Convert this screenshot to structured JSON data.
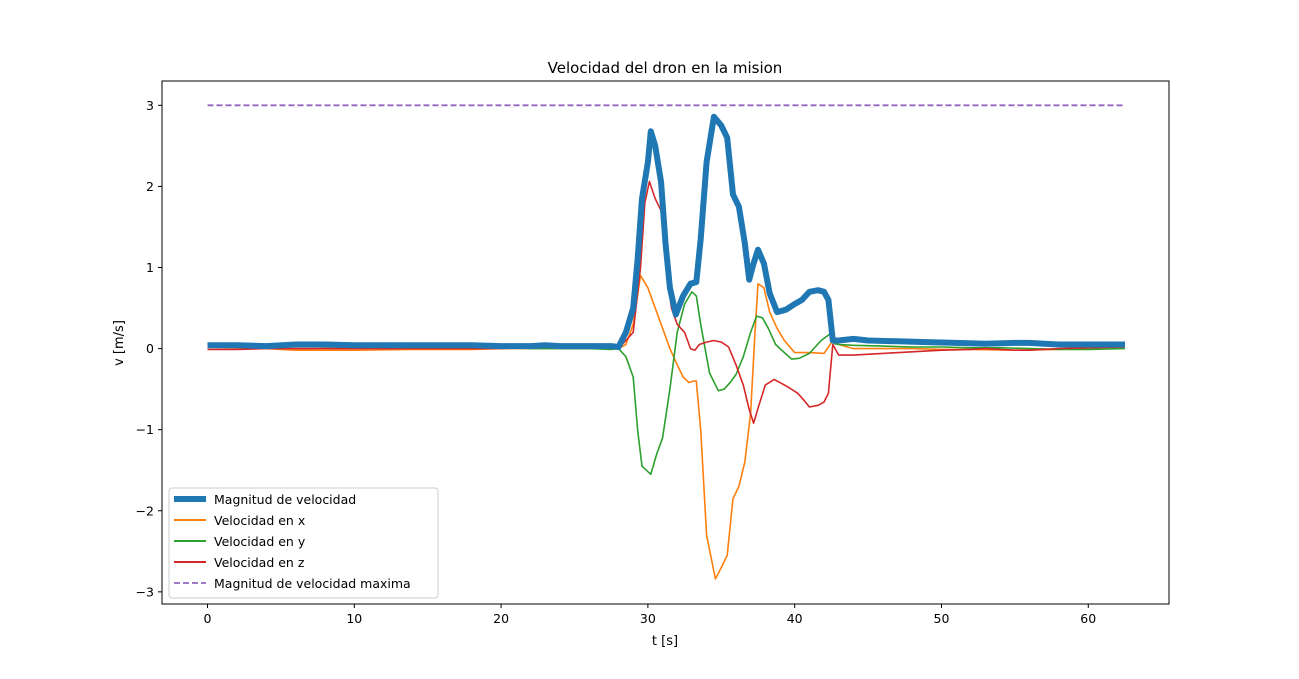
{
  "chart_data": {
    "type": "line",
    "title": "Velocidad del dron en la mision",
    "xlabel": "t [s]",
    "ylabel": "v [m/s]",
    "xlim": [
      -3.1,
      65.5
    ],
    "ylim": [
      -3.15,
      3.3
    ],
    "x_ticks": [
      0,
      10,
      20,
      30,
      40,
      50,
      60
    ],
    "y_ticks": [
      -3,
      -2,
      -1,
      0,
      1,
      2,
      3
    ],
    "x_tick_labels": [
      "0",
      "10",
      "20",
      "30",
      "40",
      "50",
      "60"
    ],
    "y_tick_labels": [
      "−3",
      "−2",
      "−1",
      "0",
      "1",
      "2",
      "3"
    ],
    "grid": false,
    "legend_position": "lower-left",
    "series": [
      {
        "name": "Magnitud de velocidad",
        "color": "#1f77b4",
        "style": "solid-thick",
        "points": [
          [
            0,
            0.04
          ],
          [
            2,
            0.04
          ],
          [
            4,
            0.03
          ],
          [
            6,
            0.05
          ],
          [
            8,
            0.05
          ],
          [
            10,
            0.04
          ],
          [
            12,
            0.04
          ],
          [
            14,
            0.04
          ],
          [
            16,
            0.04
          ],
          [
            18,
            0.04
          ],
          [
            20,
            0.03
          ],
          [
            22,
            0.03
          ],
          [
            23,
            0.04
          ],
          [
            24,
            0.03
          ],
          [
            26,
            0.03
          ],
          [
            27.5,
            0.03
          ],
          [
            28,
            0.02
          ],
          [
            28.5,
            0.2
          ],
          [
            29,
            0.5
          ],
          [
            29.3,
            1.1
          ],
          [
            29.6,
            1.85
          ],
          [
            30.0,
            2.3
          ],
          [
            30.2,
            2.68
          ],
          [
            30.5,
            2.5
          ],
          [
            30.9,
            2.05
          ],
          [
            31.2,
            1.3
          ],
          [
            31.5,
            0.75
          ],
          [
            31.9,
            0.42
          ],
          [
            32.4,
            0.65
          ],
          [
            32.9,
            0.8
          ],
          [
            33.3,
            0.82
          ],
          [
            33.6,
            1.35
          ],
          [
            34.0,
            2.3
          ],
          [
            34.5,
            2.86
          ],
          [
            35.0,
            2.75
          ],
          [
            35.4,
            2.6
          ],
          [
            35.8,
            1.9
          ],
          [
            36.2,
            1.75
          ],
          [
            36.6,
            1.3
          ],
          [
            36.9,
            0.85
          ],
          [
            37.2,
            1.05
          ],
          [
            37.5,
            1.22
          ],
          [
            37.9,
            1.05
          ],
          [
            38.3,
            0.68
          ],
          [
            38.8,
            0.45
          ],
          [
            39.4,
            0.48
          ],
          [
            40.0,
            0.55
          ],
          [
            40.5,
            0.6
          ],
          [
            41.0,
            0.7
          ],
          [
            41.6,
            0.72
          ],
          [
            42.0,
            0.7
          ],
          [
            42.3,
            0.6
          ],
          [
            42.6,
            0.1
          ],
          [
            43,
            0.1
          ],
          [
            44,
            0.12
          ],
          [
            45,
            0.1
          ],
          [
            47,
            0.09
          ],
          [
            49,
            0.08
          ],
          [
            51,
            0.07
          ],
          [
            53,
            0.06
          ],
          [
            55,
            0.07
          ],
          [
            56,
            0.07
          ],
          [
            57,
            0.06
          ],
          [
            58,
            0.05
          ],
          [
            60,
            0.05
          ],
          [
            62.5,
            0.05
          ]
        ]
      },
      {
        "name": "Velocidad en x",
        "color": "#ff7f0e",
        "style": "solid",
        "points": [
          [
            0,
            0.02
          ],
          [
            2,
            0.01
          ],
          [
            4,
            0.0
          ],
          [
            6,
            -0.02
          ],
          [
            8,
            -0.02
          ],
          [
            10,
            -0.02
          ],
          [
            14,
            -0.01
          ],
          [
            18,
            -0.01
          ],
          [
            20,
            0.0
          ],
          [
            22,
            0.0
          ],
          [
            24,
            0.0
          ],
          [
            26,
            0.0
          ],
          [
            27.5,
            0.0
          ],
          [
            28,
            0.0
          ],
          [
            28.5,
            0.05
          ],
          [
            29,
            0.3
          ],
          [
            29.5,
            0.9
          ],
          [
            30.0,
            0.75
          ],
          [
            30.5,
            0.5
          ],
          [
            31.0,
            0.25
          ],
          [
            31.5,
            0.0
          ],
          [
            32.0,
            -0.2
          ],
          [
            32.4,
            -0.35
          ],
          [
            32.8,
            -0.42
          ],
          [
            33.1,
            -0.4
          ],
          [
            33.3,
            -0.4
          ],
          [
            33.6,
            -1.0
          ],
          [
            34.0,
            -2.3
          ],
          [
            34.6,
            -2.84
          ],
          [
            35.0,
            -2.7
          ],
          [
            35.4,
            -2.55
          ],
          [
            35.8,
            -1.85
          ],
          [
            36.2,
            -1.7
          ],
          [
            36.6,
            -1.4
          ],
          [
            37.0,
            -0.8
          ],
          [
            37.3,
            0.2
          ],
          [
            37.5,
            0.8
          ],
          [
            37.9,
            0.75
          ],
          [
            38.3,
            0.45
          ],
          [
            38.8,
            0.25
          ],
          [
            39.3,
            0.1
          ],
          [
            40,
            -0.05
          ],
          [
            41,
            -0.05
          ],
          [
            42,
            -0.06
          ],
          [
            42.6,
            0.1
          ],
          [
            43,
            0.05
          ],
          [
            44,
            0.0
          ],
          [
            46,
            0.0
          ],
          [
            48,
            0.0
          ],
          [
            50,
            -0.01
          ],
          [
            52,
            -0.01
          ],
          [
            55,
            -0.02
          ],
          [
            58,
            -0.01
          ],
          [
            60,
            0.01
          ],
          [
            62.5,
            0.02
          ]
        ]
      },
      {
        "name": "Velocidad en y",
        "color": "#2ca02c",
        "style": "solid",
        "points": [
          [
            0,
            0.03
          ],
          [
            2,
            0.03
          ],
          [
            4,
            0.02
          ],
          [
            6,
            0.03
          ],
          [
            8,
            0.02
          ],
          [
            10,
            0.02
          ],
          [
            14,
            0.02
          ],
          [
            16,
            0.03
          ],
          [
            18,
            0.02
          ],
          [
            20,
            0.02
          ],
          [
            22,
            0.0
          ],
          [
            24,
            0.0
          ],
          [
            26,
            0.0
          ],
          [
            27.5,
            -0.01
          ],
          [
            28,
            0.0
          ],
          [
            28.5,
            -0.1
          ],
          [
            29,
            -0.35
          ],
          [
            29.3,
            -1.0
          ],
          [
            29.6,
            -1.45
          ],
          [
            30.2,
            -1.55
          ],
          [
            30.6,
            -1.3
          ],
          [
            31.0,
            -1.1
          ],
          [
            31.5,
            -0.5
          ],
          [
            32.0,
            0.2
          ],
          [
            32.5,
            0.55
          ],
          [
            33.0,
            0.7
          ],
          [
            33.3,
            0.65
          ],
          [
            33.6,
            0.3
          ],
          [
            34.2,
            -0.3
          ],
          [
            34.8,
            -0.52
          ],
          [
            35.2,
            -0.5
          ],
          [
            35.6,
            -0.42
          ],
          [
            36.0,
            -0.32
          ],
          [
            36.5,
            -0.1
          ],
          [
            37.0,
            0.2
          ],
          [
            37.4,
            0.4
          ],
          [
            37.8,
            0.38
          ],
          [
            38.2,
            0.25
          ],
          [
            38.7,
            0.05
          ],
          [
            39.3,
            -0.05
          ],
          [
            39.8,
            -0.13
          ],
          [
            40.3,
            -0.12
          ],
          [
            41.0,
            -0.06
          ],
          [
            41.8,
            0.1
          ],
          [
            42.4,
            0.18
          ],
          [
            42.7,
            0.06
          ],
          [
            43,
            0.05
          ],
          [
            44,
            0.04
          ],
          [
            46,
            0.03
          ],
          [
            48,
            0.02
          ],
          [
            50,
            0.02
          ],
          [
            52,
            0.01
          ],
          [
            54,
            0.01
          ],
          [
            56,
            0.0
          ],
          [
            58,
            -0.01
          ],
          [
            60,
            -0.01
          ],
          [
            62.5,
            0.0
          ]
        ]
      },
      {
        "name": "Velocidad en z",
        "color": "#d62728",
        "style": "solid",
        "points": [
          [
            0,
            -0.01
          ],
          [
            2,
            -0.01
          ],
          [
            4,
            0.0
          ],
          [
            6,
            0.0
          ],
          [
            8,
            0.0
          ],
          [
            10,
            0.0
          ],
          [
            14,
            0.0
          ],
          [
            18,
            0.0
          ],
          [
            20,
            0.0
          ],
          [
            22,
            0.02
          ],
          [
            23,
            0.03
          ],
          [
            24,
            0.02
          ],
          [
            26,
            0.02
          ],
          [
            27.5,
            0.02
          ],
          [
            28,
            0.0
          ],
          [
            28.5,
            0.1
          ],
          [
            29,
            0.2
          ],
          [
            29.5,
            1.0
          ],
          [
            29.8,
            1.8
          ],
          [
            30.1,
            2.06
          ],
          [
            30.5,
            1.85
          ],
          [
            30.9,
            1.7
          ],
          [
            31.2,
            1.1
          ],
          [
            31.6,
            0.5
          ],
          [
            32.0,
            0.3
          ],
          [
            32.5,
            0.2
          ],
          [
            32.9,
            0.0
          ],
          [
            33.2,
            -0.02
          ],
          [
            33.5,
            0.05
          ],
          [
            34.0,
            0.08
          ],
          [
            34.5,
            0.1
          ],
          [
            35.0,
            0.08
          ],
          [
            35.5,
            0.02
          ],
          [
            36.0,
            -0.2
          ],
          [
            36.5,
            -0.45
          ],
          [
            36.9,
            -0.75
          ],
          [
            37.2,
            -0.92
          ],
          [
            37.6,
            -0.68
          ],
          [
            38.0,
            -0.45
          ],
          [
            38.6,
            -0.38
          ],
          [
            39.0,
            -0.42
          ],
          [
            39.6,
            -0.48
          ],
          [
            40.2,
            -0.55
          ],
          [
            40.6,
            -0.63
          ],
          [
            41.0,
            -0.72
          ],
          [
            41.6,
            -0.7
          ],
          [
            42.0,
            -0.66
          ],
          [
            42.3,
            -0.55
          ],
          [
            42.6,
            0.05
          ],
          [
            43.0,
            -0.08
          ],
          [
            44,
            -0.08
          ],
          [
            46,
            -0.06
          ],
          [
            48,
            -0.04
          ],
          [
            50,
            -0.02
          ],
          [
            52,
            -0.01
          ],
          [
            53,
            0.0
          ],
          [
            54,
            -0.01
          ],
          [
            55,
            -0.02
          ],
          [
            56,
            -0.02
          ],
          [
            58,
            0.0
          ],
          [
            60,
            0.01
          ],
          [
            62.5,
            0.02
          ]
        ]
      },
      {
        "name": "Magnitud de velocidad maxima",
        "color": "#9467bd",
        "style": "dashed",
        "points": [
          [
            0,
            3.0
          ],
          [
            62.5,
            3.0
          ]
        ]
      }
    ]
  }
}
